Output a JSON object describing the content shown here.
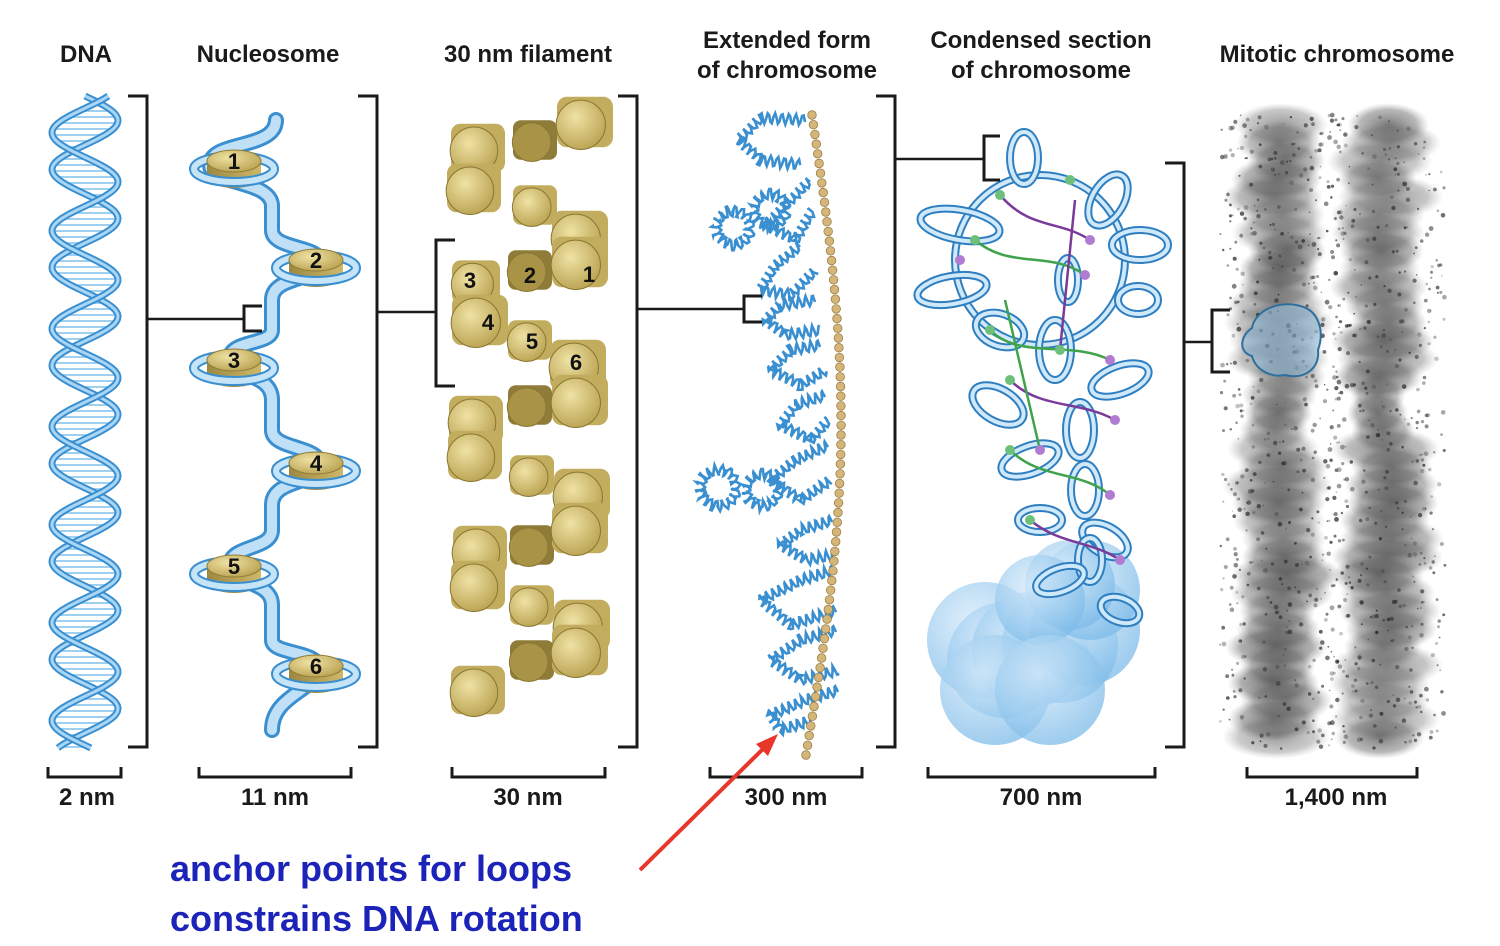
{
  "stages": [
    {
      "title_lines": [
        "DNA"
      ],
      "scale": "2 nm"
    },
    {
      "title_lines": [
        "Nucleosome"
      ],
      "scale": "11 nm"
    },
    {
      "title_lines": [
        "30 nm filament"
      ],
      "scale": "30 nm"
    },
    {
      "title_lines": [
        "Extended form",
        "of chromosome"
      ],
      "scale": "300 nm"
    },
    {
      "title_lines": [
        "Condensed section",
        "of chromosome"
      ],
      "scale": "700 nm"
    },
    {
      "title_lines": [
        "Mitotic chromosome"
      ],
      "scale": "1,400 nm"
    }
  ],
  "nucleosome_labels": [
    "1",
    "2",
    "3",
    "4",
    "5",
    "6"
  ],
  "filament_labels": [
    "1",
    "2",
    "3",
    "4",
    "5",
    "6"
  ],
  "annotation": {
    "line1": "anchor points for loops",
    "line2": "constrains DNA rotation",
    "arrow_color": "#e8362a",
    "text_color": "#1c23b8"
  },
  "colors": {
    "dna_blue": "#5aaee3",
    "histone_gold": "#c9b56a",
    "loop_green": "#3ea34a",
    "loop_purple": "#7a3a9a",
    "chromatin_gray": "#4a4a4a"
  }
}
